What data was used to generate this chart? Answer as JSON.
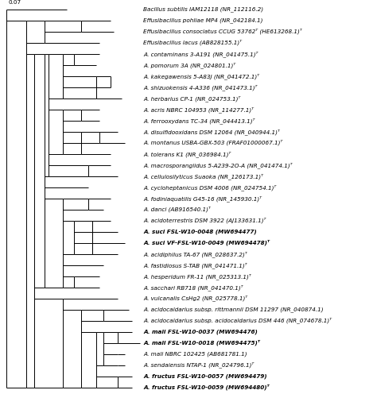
{
  "scale_bar": "0.07",
  "figsize": [
    4.74,
    4.96
  ],
  "dpi": 100,
  "taxa": [
    {
      "name": "Bacillus subtilis IAM12118 (NR_112116.2)",
      "bold": false,
      "type": "outgroup",
      "row": 0
    },
    {
      "name": "Effusibacillus pohliae MP4 (NR_042184.1)",
      "bold": false,
      "type": "normal",
      "row": 1
    },
    {
      "name": "Effusibacillus consociatus CCUG 53762ᵀ (HE613268.1)ᵀ",
      "bold": false,
      "type": "normal",
      "row": 2
    },
    {
      "name": "Effusibacillus lacus (AB828155.1)ᵀ",
      "bold": false,
      "type": "normal",
      "row": 3
    },
    {
      "name": "A. contaminans 3-A191 (NR_041475.1)ᵀ",
      "bold": false,
      "type": "normal",
      "row": 4
    },
    {
      "name": "A. pomorum 3A (NR_024801.1)ᵀ",
      "bold": false,
      "type": "normal",
      "row": 5
    },
    {
      "name": "A. kakegawensis 5-A83J (NR_041472.1)ᵀ",
      "bold": false,
      "type": "normal",
      "row": 6
    },
    {
      "name": "A. shizuokensis 4-A336 (NR_041473.1)ᵀ",
      "bold": false,
      "type": "normal",
      "row": 7
    },
    {
      "name": "A. herbarius CP-1 (NR_024753.1)ᵀ",
      "bold": false,
      "type": "normal",
      "row": 8
    },
    {
      "name": "A. acris NBRC 104953 (NR_114277.1)ᵀ",
      "bold": false,
      "type": "normal",
      "row": 9
    },
    {
      "name": "A. ferrooxydans TC-34 (NR_044413.1)ᵀ",
      "bold": false,
      "type": "normal",
      "row": 10
    },
    {
      "name": "A. disulfidooxidans DSM 12064 (NR_040944.1)ᵀ",
      "bold": false,
      "type": "normal",
      "row": 11
    },
    {
      "name": "A. montanus USBA-GBX-503 (FRAF01000067.1)ᵀ",
      "bold": false,
      "type": "normal",
      "row": 12
    },
    {
      "name": "A. tolerans K1 (NR_036984.1)ᵀ",
      "bold": false,
      "type": "normal",
      "row": 13
    },
    {
      "name": "A. macrosporangiidus 5-A239-2O-A (NR_041474.1)ᵀ",
      "bold": false,
      "type": "normal",
      "row": 14
    },
    {
      "name": "A. cellulosilyticus Suaoka (NR_126173.1)ᵀ",
      "bold": false,
      "type": "normal",
      "row": 15
    },
    {
      "name": "A. cycloheptanicus DSM 4006 (NR_024754.1)ᵀ",
      "bold": false,
      "type": "normal",
      "row": 16
    },
    {
      "name": "A. fodiniaquatilis G45-16 (NR_145930.1)ᵀ",
      "bold": false,
      "type": "normal",
      "row": 17
    },
    {
      "name": "A. danci (AB916540.1)ᵀ",
      "bold": false,
      "type": "normal",
      "row": 18
    },
    {
      "name": "A. acidoterrestris DSM 3922 (AJ133631.1)ᵀ",
      "bold": false,
      "type": "normal",
      "row": 19
    },
    {
      "name": "A. suci FSL-W10-0048 (MW694477)",
      "bold": true,
      "type": "bold",
      "row": 20
    },
    {
      "name": "A. suci VF-FSL-W10-0049 (MW694478)ᵀ",
      "bold": true,
      "type": "bold",
      "row": 21
    },
    {
      "name": "A. acidiphilus TA-67 (NR_028637.2)ᵀ",
      "bold": false,
      "type": "normal",
      "row": 22
    },
    {
      "name": "A. fastidiosus S-TAB (NR_041471.1)ᵀ",
      "bold": false,
      "type": "normal",
      "row": 23
    },
    {
      "name": "A. hesperidum FR-11 (NR_025313.1)ᵀ",
      "bold": false,
      "type": "normal",
      "row": 24
    },
    {
      "name": "A. sacchari RB718 (NR_041470.1)ᵀ",
      "bold": false,
      "type": "normal",
      "row": 25
    },
    {
      "name": "A. vulcanalis CsHg2 (NR_025778.1)ᵀ",
      "bold": false,
      "type": "normal",
      "row": 26
    },
    {
      "name": "A. acidocaldarius subsp. rittmannii DSM 11297 (NR_040874.1)",
      "bold": false,
      "type": "normal",
      "row": 27
    },
    {
      "name": "A. acidocaldarius subsp. acidocaldarius DSM 446 (NR_074678.1)ᵀ",
      "bold": false,
      "type": "normal",
      "row": 28
    },
    {
      "name": "A. mali FSL-W10-0037 (MW694476)",
      "bold": true,
      "type": "bold",
      "row": 29
    },
    {
      "name": "A. mali FSL-W10-0018 (MW694475)ᵀ",
      "bold": true,
      "type": "bold",
      "row": 30
    },
    {
      "name": "A. mali NBRC 102425 (AB681781.1)",
      "bold": false,
      "type": "normal",
      "row": 31
    },
    {
      "name": "A. sendaiensis NTAP-1 (NR_024796.1)ᵀ",
      "bold": false,
      "type": "normal",
      "row": 32
    },
    {
      "name": "A. fructus FSL-W10-0057 (MW694479)",
      "bold": true,
      "type": "bold",
      "row": 33
    },
    {
      "name": "A. fructus FSL-W10-0059 (MW694480)ᵀ",
      "bold": true,
      "type": "bold",
      "row": 34
    }
  ]
}
